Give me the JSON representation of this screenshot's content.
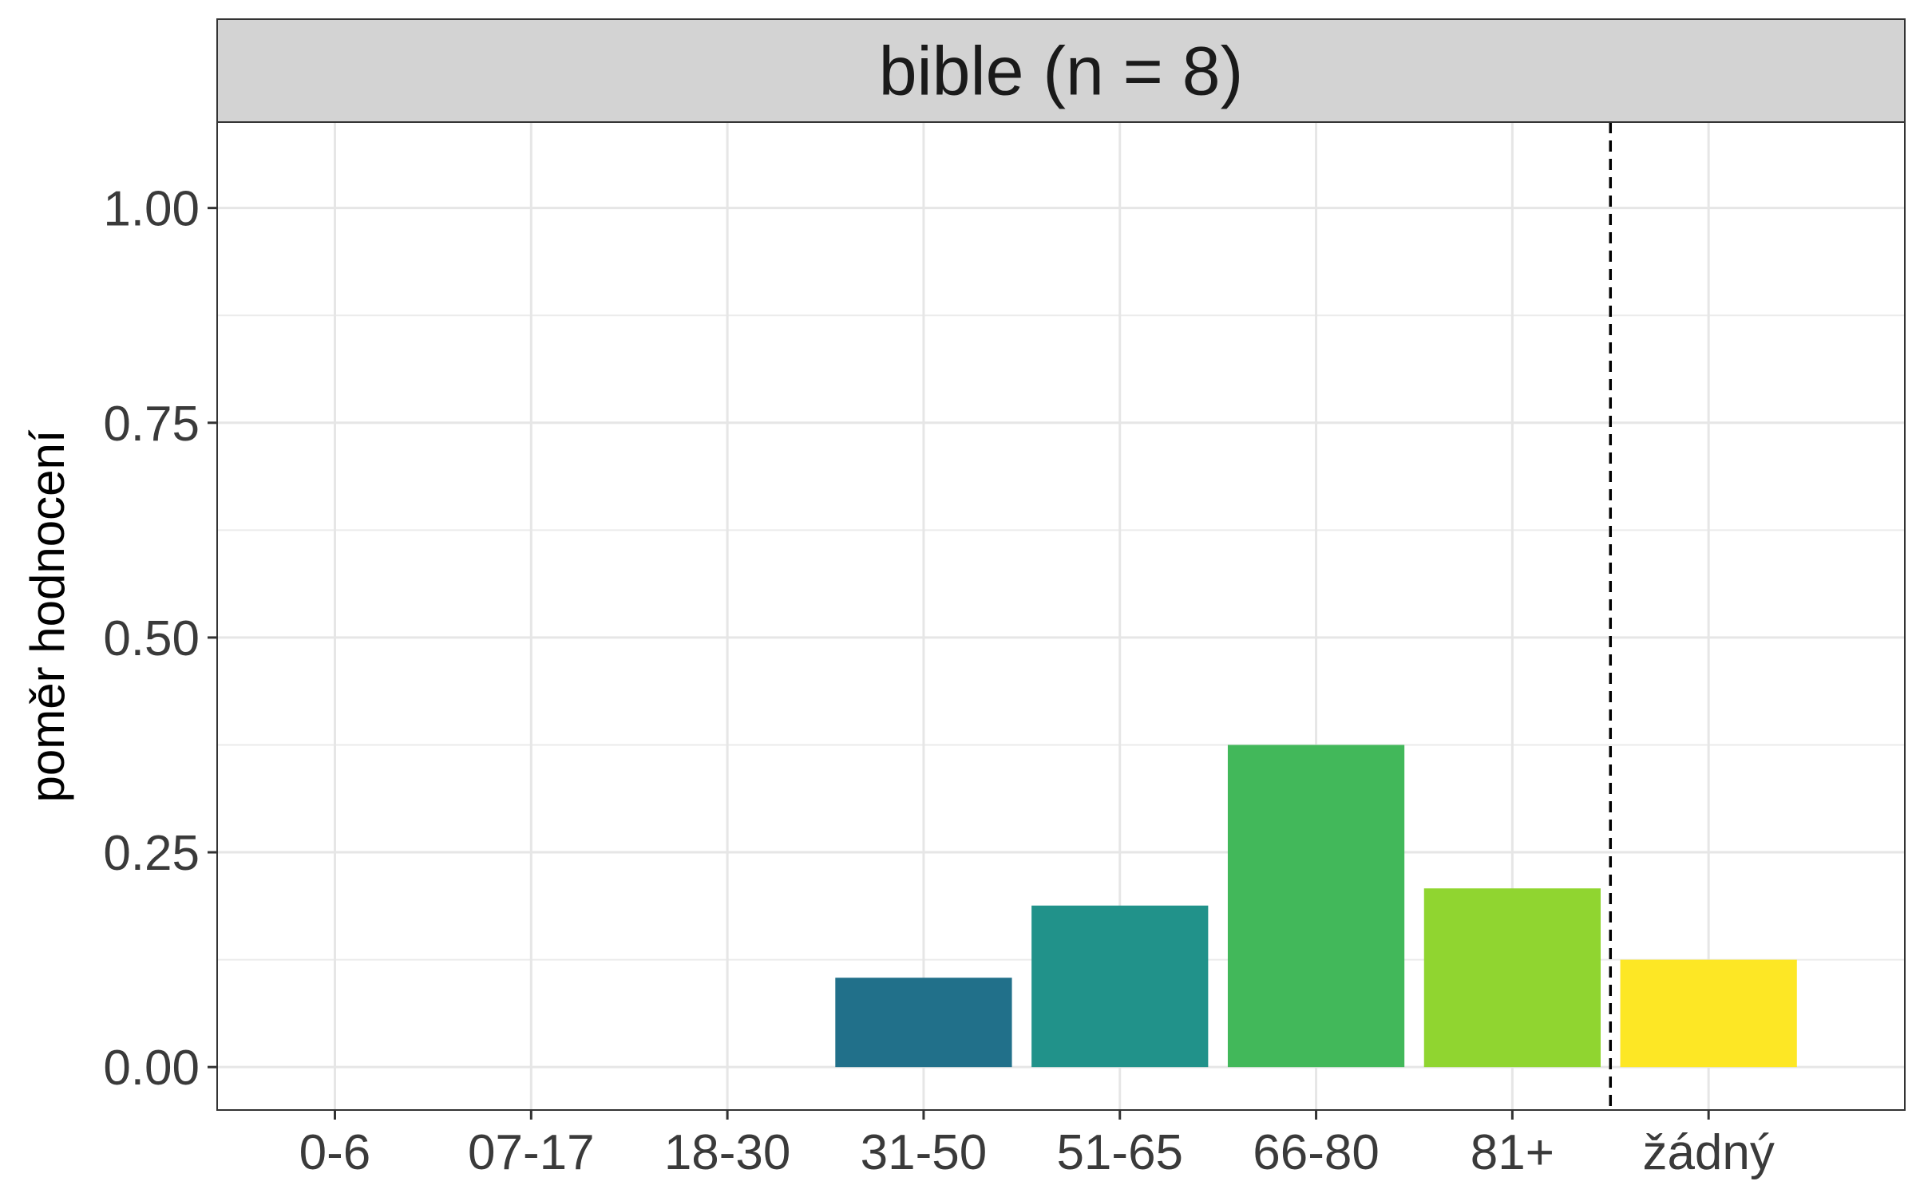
{
  "chart_data": {
    "type": "bar",
    "title": "bible (n = 8)",
    "xlabel": "",
    "ylabel": "poměr hodnocení",
    "categories": [
      "0-6",
      "07-17",
      "18-30",
      "31-50",
      "51-65",
      "66-80",
      "81+",
      "žádný"
    ],
    "values": [
      0,
      0,
      0,
      0.104,
      0.188,
      0.375,
      0.208,
      0.125
    ],
    "colors": [
      "#440154",
      "#46337e",
      "#365c8d",
      "#21708a",
      "#21928a",
      "#42b85a",
      "#90d530",
      "#fde725"
    ],
    "ylim": [
      -0.05,
      1.1
    ],
    "yticks": [
      "0.00",
      "0.25",
      "0.50",
      "0.75",
      "1.00"
    ],
    "grid": true,
    "separator_after_category": "81+",
    "separator_style": "dashed"
  }
}
